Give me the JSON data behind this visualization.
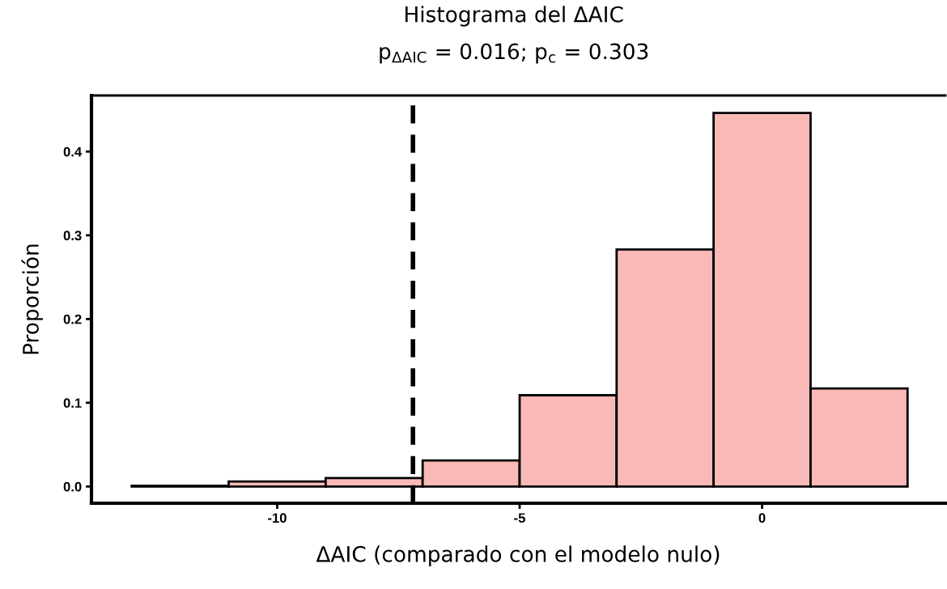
{
  "chart_data": {
    "type": "histogram",
    "title": "Histograma del ΔAIC",
    "subtitle": "p$_{ΔAIC}$ = 0.016; p$_{c}$ = 0.303",
    "xlabel": "ΔAIC (comparado con el modelo nulo)",
    "ylabel": "Proporción",
    "bins": [
      -13,
      -11,
      -9,
      -7,
      -5,
      -3,
      -1,
      1,
      3
    ],
    "values": [
      0.001,
      0.006,
      0.01,
      0.031,
      0.109,
      0.283,
      0.446,
      0.117
    ],
    "color": "#f9bab7",
    "xlim": [
      -13.83,
      3.78
    ],
    "ylim": [
      -0.02,
      0.467
    ],
    "xticks": [
      -10,
      -5,
      0
    ],
    "yticks": [
      {
        "value": 0,
        "label": "0.0"
      },
      0.1,
      0.2,
      0.3,
      0.4
    ],
    "ref_lines": [
      {
        "axis": "x",
        "value": -7.2,
        "color": "#000000",
        "line_style": "dashed"
      }
    ],
    "grid": false,
    "legend": false
  }
}
